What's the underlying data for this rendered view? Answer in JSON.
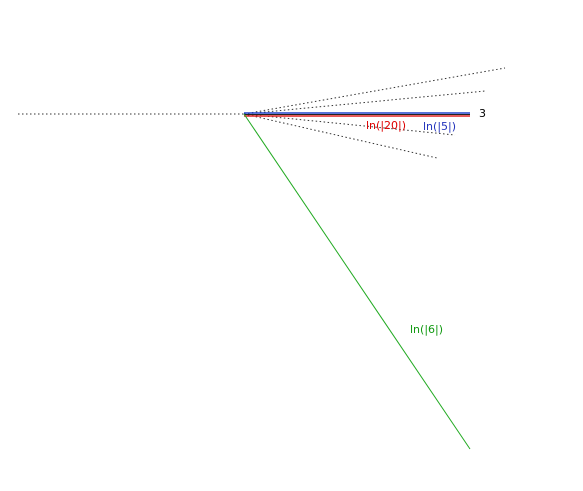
{
  "labels": {
    "end": "3",
    "red": "ln(|20|)",
    "blue": "ln(|5|)",
    "green": "ln(|6|)"
  }
}
